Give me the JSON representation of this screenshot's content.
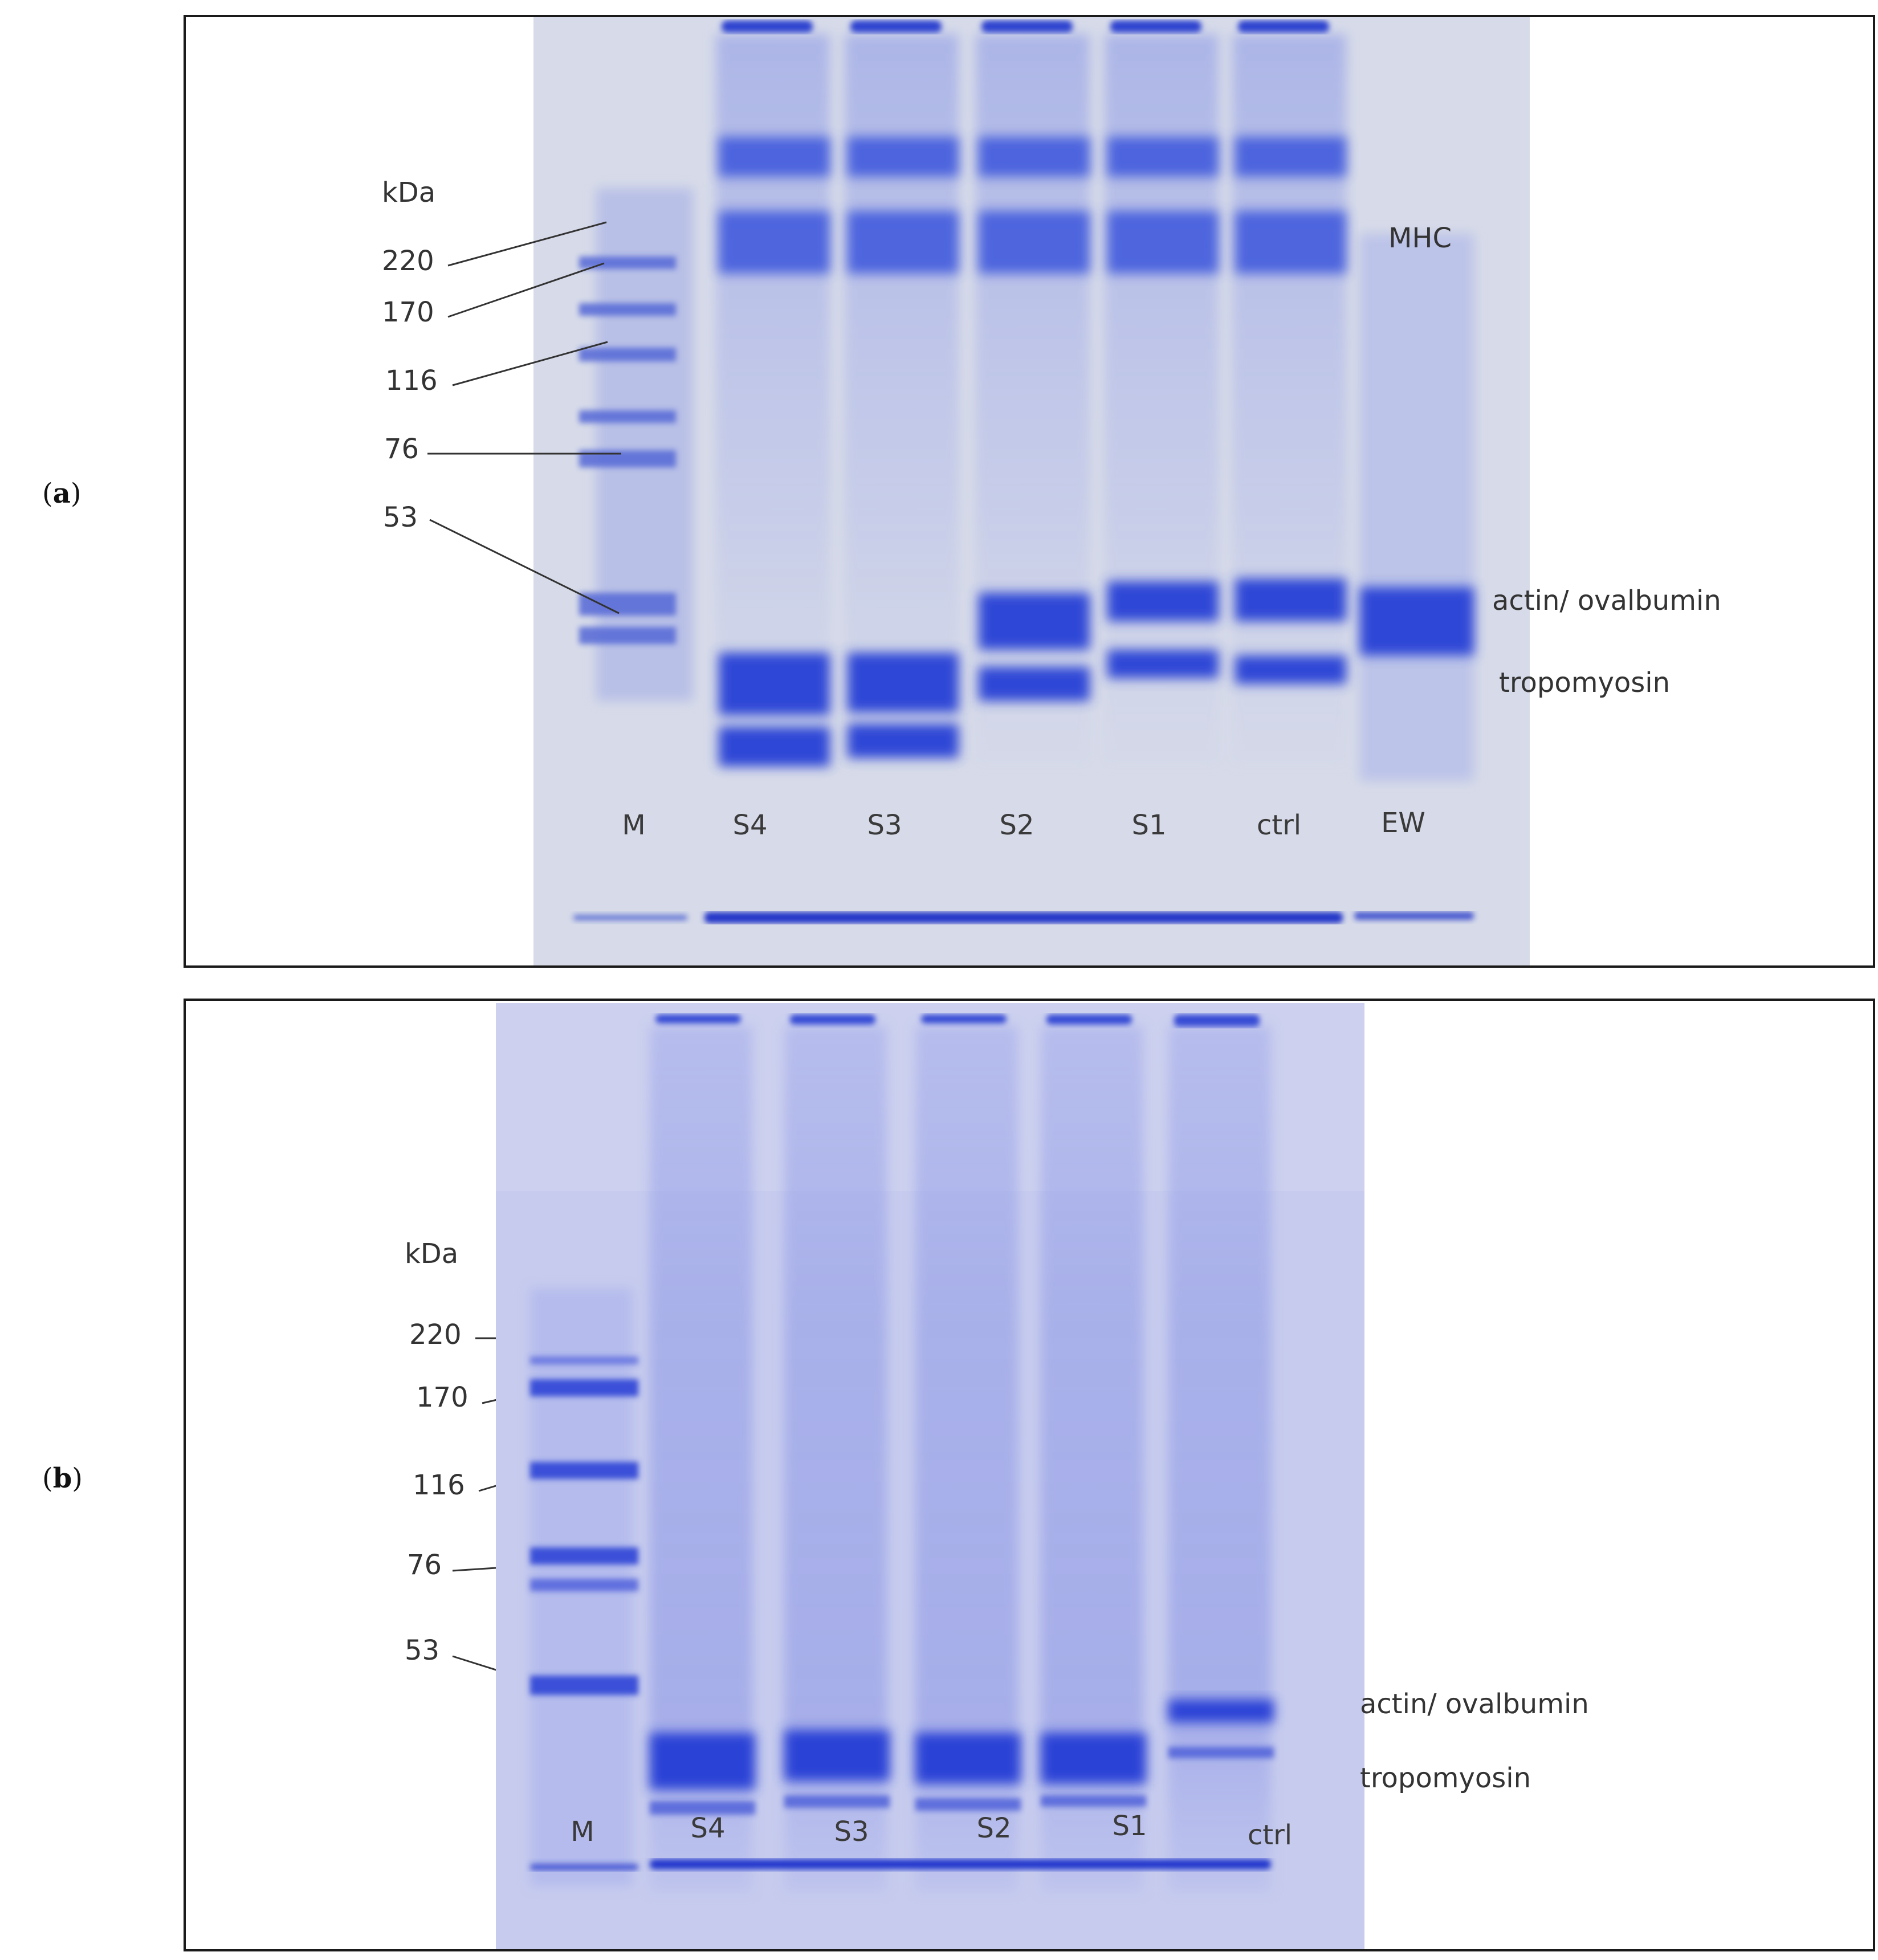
{
  "panel_a": {
    "label": "a",
    "unit": "kDa",
    "markers": [
      "220",
      "170",
      "116",
      "76",
      "53"
    ],
    "bands": {
      "mhc": "MHC",
      "actin": "actin/ ovalbumin",
      "tropomyosin": "tropomyosin"
    },
    "lanes": [
      "M",
      "S4",
      "S3",
      "S2",
      "S1",
      "ctrl",
      "EW"
    ]
  },
  "panel_b": {
    "label": "b",
    "unit": "kDa",
    "markers": [
      "220",
      "170",
      "116",
      "76",
      "53"
    ],
    "bands": {
      "actin": "actin/ ovalbumin",
      "tropomyosin": "tropomyosin"
    },
    "lanes": [
      "M",
      "S4",
      "S3",
      "S2",
      "S1",
      "ctrl"
    ]
  },
  "colors": {
    "stain": "#2f47d6",
    "gel_a": "#d8dcea",
    "gel_b": "#cfd2f0",
    "frame": "#1a1a1a"
  }
}
